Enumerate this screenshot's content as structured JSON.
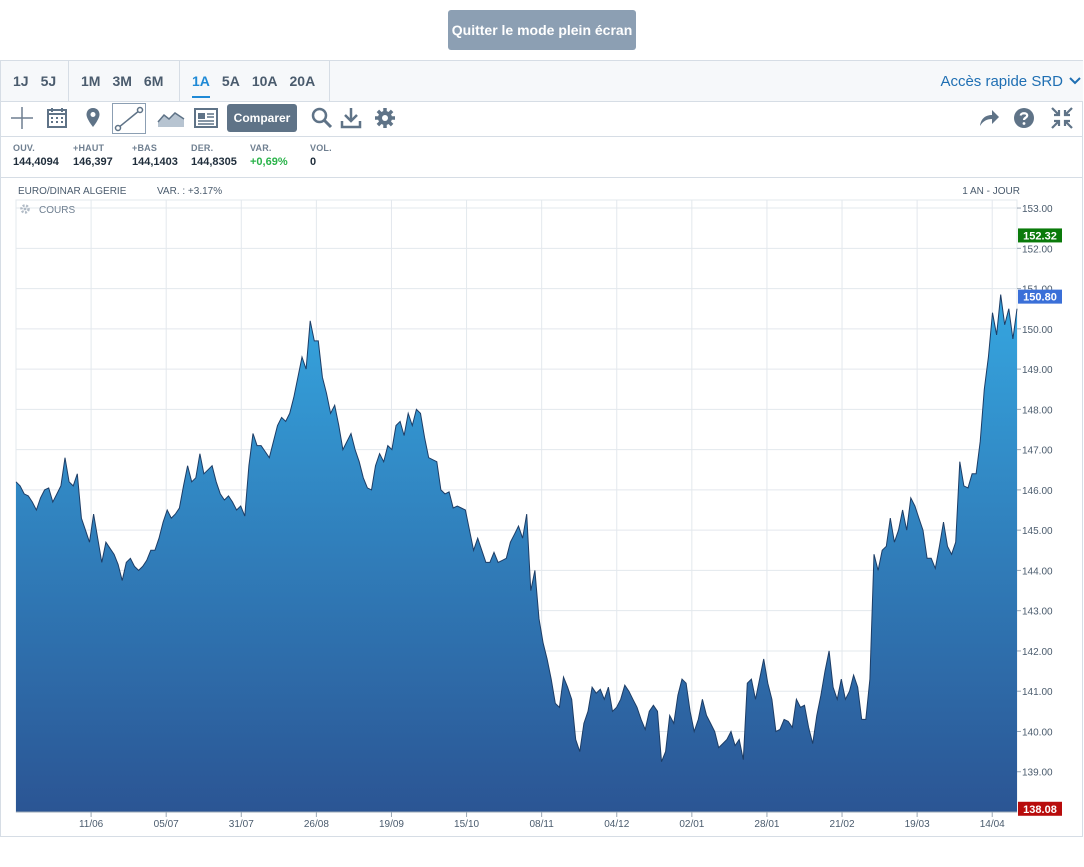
{
  "exit_fullscreen_label": "Quitter le mode plein écran",
  "periods": {
    "group1": [
      "1J",
      "5J"
    ],
    "group2": [
      "1M",
      "3M",
      "6M"
    ],
    "group3": [
      "1A",
      "5A",
      "10A",
      "20A"
    ],
    "active": "1A"
  },
  "quick_access_label": "Accès rapide SRD",
  "toolbar": {
    "compare_label": "Comparer",
    "tools": [
      "crosshair-icon",
      "calendar-icon",
      "map-pin-icon",
      "trendline-icon",
      "area-chart-icon",
      "news-icon",
      "search-icon",
      "download-icon",
      "gear-icon",
      "share-icon",
      "help-icon",
      "collapse-icon"
    ]
  },
  "stats": [
    {
      "label": "OUV.",
      "value": "144,4094"
    },
    {
      "label": "+HAUT",
      "value": "146,397"
    },
    {
      "label": "+BAS",
      "value": "144,1403"
    },
    {
      "label": "DER.",
      "value": "144,8305"
    },
    {
      "label": "VAR.",
      "value": "+0,69%"
    },
    {
      "label": "VOL.",
      "value": "0"
    }
  ],
  "colors": {
    "accent": "#1f8ad6",
    "positive": "#2ab34a",
    "high_marker": "#0a7a0a",
    "last_marker": "#3a6fd8",
    "low_marker": "#b80c0c",
    "area_top": "#35a6e0",
    "area_bottom": "#2b5594"
  },
  "chart_data": {
    "type": "area",
    "instrument": "EURO/DINAR ALGERIE",
    "variation_label": "VAR. : +3.17%",
    "period_label": "1 AN - JOUR",
    "series_label": "COURS",
    "ylim": [
      138.0,
      153.2
    ],
    "y_ticks": [
      "153.00",
      "152.00",
      "151.00",
      "150.00",
      "149.00",
      "148.00",
      "147.00",
      "146.00",
      "145.00",
      "144.00",
      "143.00",
      "142.00",
      "141.00",
      "140.00",
      "139.00"
    ],
    "x_ticks": [
      "11/06",
      "05/07",
      "31/07",
      "26/08",
      "19/09",
      "15/10",
      "08/11",
      "04/12",
      "02/01",
      "28/01",
      "21/02",
      "19/03",
      "14/04"
    ],
    "markers": [
      {
        "label": "152.32",
        "value": 152.32,
        "kind": "high"
      },
      {
        "label": "150.80",
        "value": 150.8,
        "kind": "last"
      },
      {
        "label": "138.08",
        "value": 138.08,
        "kind": "low"
      }
    ],
    "values": [
      146.2,
      146.1,
      145.9,
      145.85,
      145.7,
      145.5,
      145.8,
      146.0,
      146.05,
      145.7,
      145.9,
      146.1,
      146.8,
      146.2,
      146.1,
      146.4,
      145.3,
      145.0,
      144.7,
      145.4,
      144.8,
      144.2,
      144.7,
      144.55,
      144.4,
      144.15,
      143.75,
      144.2,
      144.3,
      144.1,
      144.0,
      144.1,
      144.25,
      144.5,
      144.5,
      144.8,
      145.2,
      145.5,
      145.3,
      145.4,
      145.55,
      146.1,
      146.6,
      146.2,
      146.3,
      146.9,
      146.4,
      146.5,
      146.6,
      146.2,
      145.9,
      145.75,
      145.85,
      145.7,
      145.5,
      145.6,
      145.35,
      146.6,
      147.4,
      147.1,
      147.1,
      146.95,
      146.8,
      147.2,
      147.6,
      147.8,
      147.7,
      147.9,
      148.3,
      148.8,
      149.3,
      149.0,
      150.2,
      149.7,
      149.7,
      148.8,
      148.4,
      147.9,
      148.1,
      147.6,
      147.0,
      147.2,
      147.4,
      147.0,
      146.7,
      146.3,
      146.05,
      146.0,
      146.6,
      146.9,
      146.7,
      147.1,
      147.0,
      147.6,
      147.7,
      147.35,
      147.9,
      147.6,
      148.0,
      147.9,
      147.3,
      146.8,
      146.75,
      146.7,
      146.0,
      145.9,
      145.95,
      145.55,
      145.6,
      145.55,
      145.5,
      145.0,
      144.5,
      144.8,
      144.5,
      144.2,
      144.2,
      144.45,
      144.2,
      144.25,
      144.3,
      144.7,
      144.9,
      145.1,
      144.8,
      145.4,
      143.5,
      144.0,
      142.8,
      142.2,
      141.8,
      141.3,
      140.7,
      140.6,
      141.35,
      141.1,
      140.8,
      139.8,
      139.5,
      140.2,
      140.5,
      141.1,
      140.95,
      141.05,
      140.8,
      141.1,
      140.5,
      140.6,
      140.8,
      141.15,
      141.0,
      140.8,
      140.6,
      140.3,
      140.05,
      140.5,
      140.65,
      140.5,
      139.25,
      139.5,
      140.4,
      140.2,
      140.9,
      141.3,
      141.2,
      140.5,
      140.0,
      140.3,
      140.8,
      140.4,
      140.2,
      140.0,
      139.6,
      139.7,
      139.8,
      140.0,
      139.65,
      139.8,
      139.3,
      141.2,
      141.3,
      140.8,
      141.3,
      141.8,
      141.2,
      140.8,
      140.0,
      140.05,
      140.3,
      140.25,
      140.1,
      140.8,
      140.6,
      140.65,
      140.1,
      139.7,
      140.4,
      140.9,
      141.5,
      142.0,
      141.1,
      140.8,
      141.3,
      140.8,
      141.0,
      141.4,
      141.1,
      140.3,
      140.3,
      141.3,
      144.4,
      144.0,
      144.5,
      144.6,
      145.3,
      144.7,
      145.0,
      145.5,
      145.0,
      145.8,
      145.6,
      145.3,
      145.0,
      144.3,
      144.3,
      144.05,
      144.6,
      145.2,
      144.6,
      144.4,
      144.7,
      146.7,
      146.1,
      146.05,
      146.4,
      146.4,
      147.2,
      148.5,
      149.3,
      150.4,
      149.85,
      150.85,
      150.1,
      150.5,
      149.75,
      150.5
    ]
  }
}
